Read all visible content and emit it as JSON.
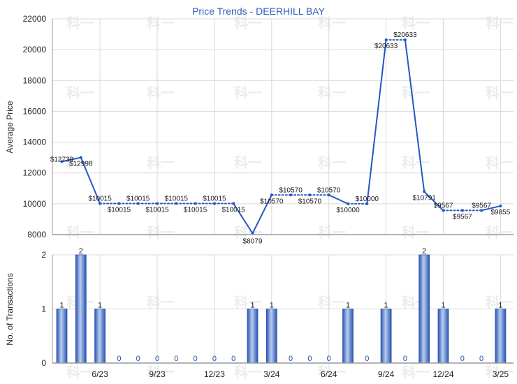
{
  "chart_data": [
    {
      "type": "line",
      "title": "Price Trends - DEERHILL BAY",
      "xlabel": "",
      "ylabel": "Average Price",
      "ylim": [
        8000,
        22000
      ],
      "yticks": [
        "8000",
        "10000",
        "12000",
        "14000",
        "16000",
        "18000",
        "20000",
        "22000"
      ],
      "grid": true,
      "series": [
        {
          "color": "#2457c5",
          "values": [
            12739,
            12998,
            10015,
            10015,
            10015,
            10015,
            10015,
            10015,
            10015,
            10015,
            8079,
            10570,
            10570,
            10570,
            10570,
            10000,
            10000,
            20633,
            20633,
            10791,
            9567,
            9567,
            9567,
            9855
          ],
          "labels": [
            "$12739",
            "$12998",
            "$10015",
            "$10015",
            "$10015",
            "$10015",
            "$10015",
            "$10015",
            "$10015",
            "$10015",
            "$8079",
            "$10570",
            "$10570",
            "$10570",
            "$10570",
            "$10000",
            "$10000",
            "$20633",
            "$20633",
            "$10791",
            "$9567",
            "$9567",
            "$9567",
            "$9855"
          ]
        }
      ]
    },
    {
      "type": "bar",
      "xlabel": "",
      "ylabel": "No. of Transactions",
      "ylim": [
        0,
        2
      ],
      "yticks": [
        "0",
        "1",
        "2"
      ],
      "grid": true,
      "xticks": [
        "6/23",
        "9/23",
        "12/23",
        "3/24",
        "6/24",
        "9/24",
        "12/24",
        "3/25"
      ],
      "values": [
        1,
        2,
        1,
        0,
        0,
        0,
        0,
        0,
        0,
        0,
        1,
        1,
        0,
        0,
        0,
        1,
        0,
        1,
        0,
        2,
        1,
        0,
        0,
        1
      ],
      "value_labels": [
        "1",
        "2",
        "1",
        "0",
        "0",
        "0",
        "0",
        "0",
        "0",
        "0",
        "1",
        "1",
        "0",
        "0",
        "0",
        "1",
        "0",
        "1",
        "0",
        "2",
        "1",
        "0",
        "0",
        "1"
      ],
      "color": "#3f6cc4"
    }
  ]
}
